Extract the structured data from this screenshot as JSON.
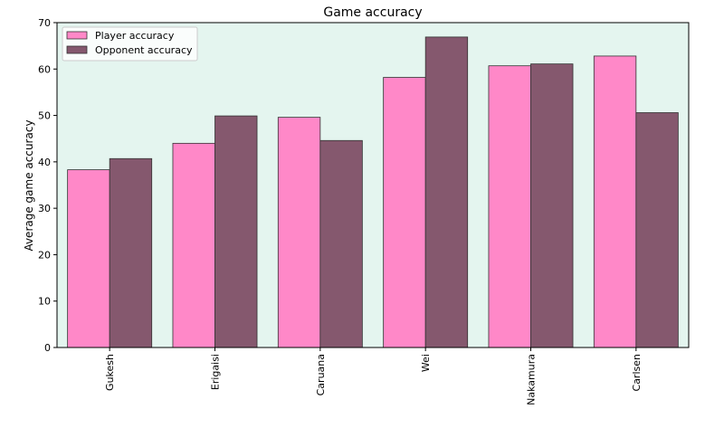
{
  "chart_data": {
    "type": "bar",
    "title": "Game accuracy",
    "xlabel": "",
    "ylabel": "Average game accuracy",
    "categories": [
      "Gukesh",
      "Erigaisi",
      "Caruana",
      "Wei",
      "Nakamura",
      "Carlsen"
    ],
    "series": [
      {
        "name": "Player accuracy",
        "values": [
          38.3,
          44.0,
          49.6,
          58.2,
          60.7,
          62.8
        ],
        "color": "#ff88c8"
      },
      {
        "name": "Opponent accuracy",
        "values": [
          40.7,
          49.9,
          44.6,
          66.9,
          61.1,
          50.6
        ],
        "color": "#85586e"
      }
    ],
    "ylim": [
      0,
      70
    ],
    "yticks": [
      0,
      10,
      20,
      30,
      40,
      50,
      60,
      70
    ],
    "grid": false,
    "legend": "top-left",
    "plot_background": "#e4f5ef"
  }
}
